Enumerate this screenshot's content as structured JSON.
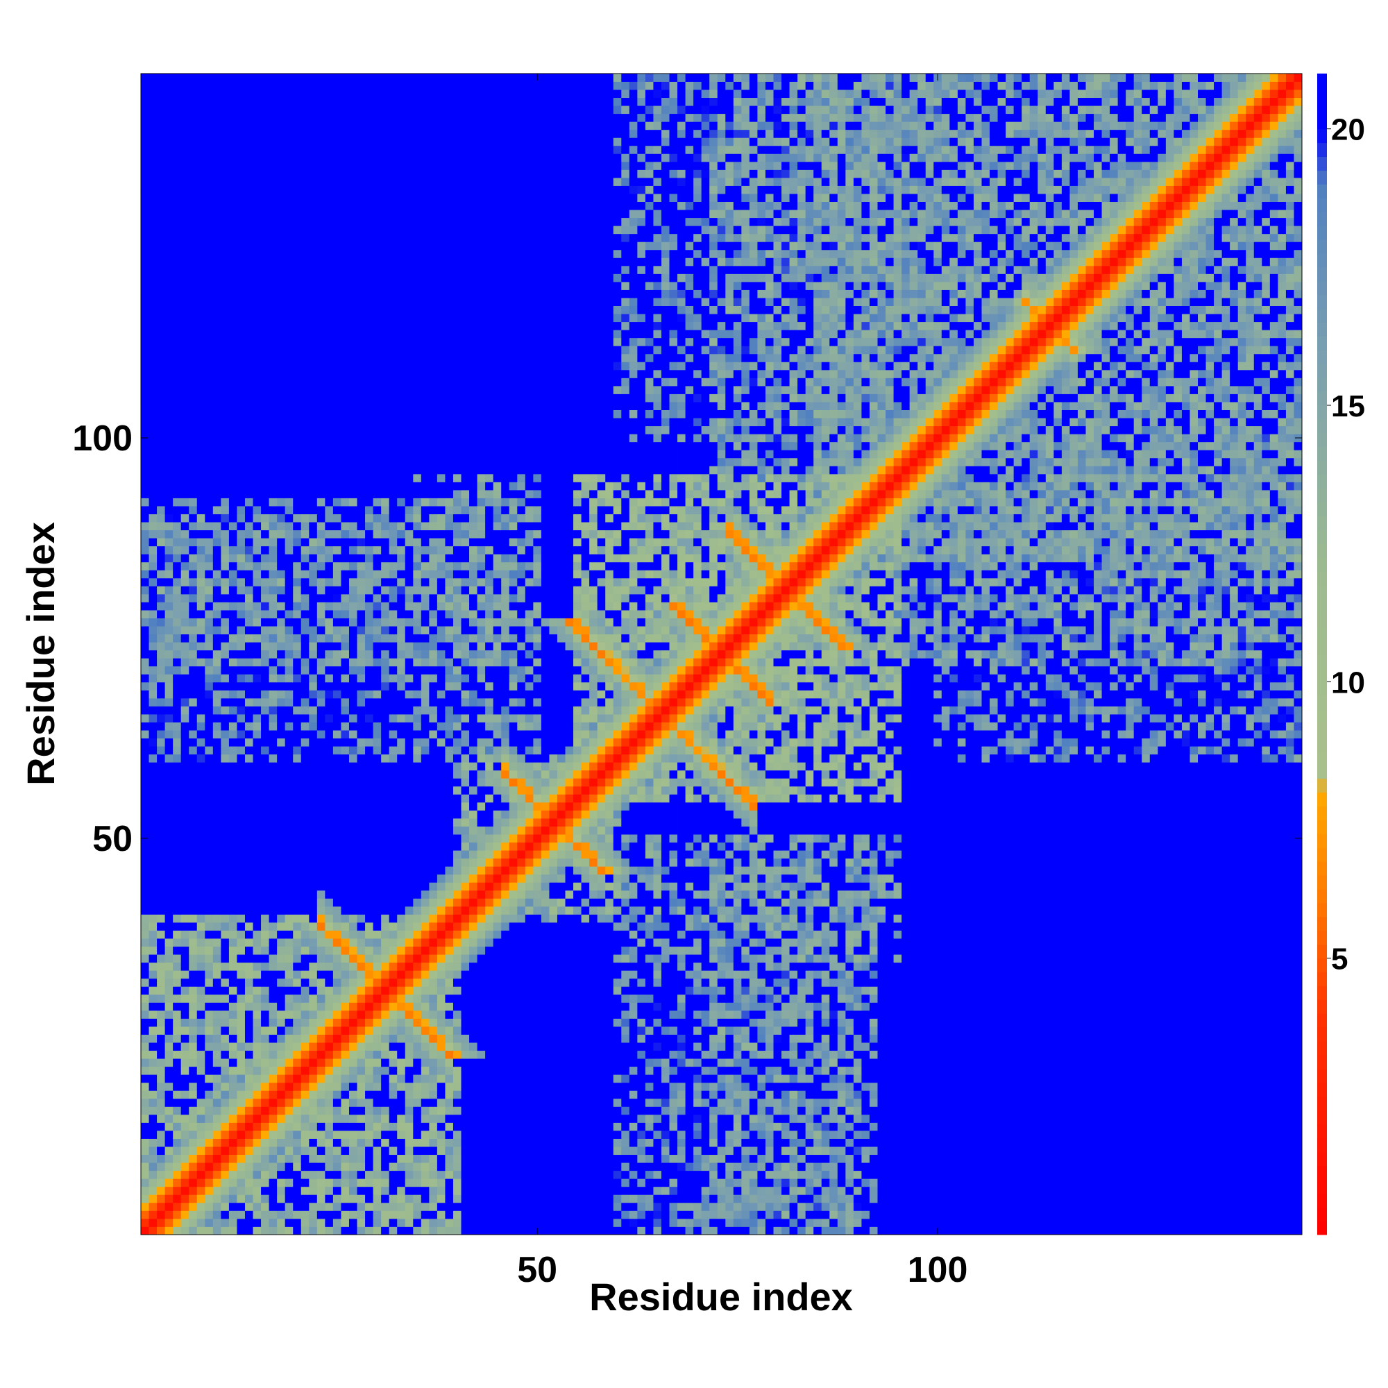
{
  "chart_data": {
    "type": "heatmap",
    "title": "",
    "xlabel": "Residue index",
    "ylabel": "Residue index",
    "n_residues": 145,
    "xlim": [
      1,
      145
    ],
    "ylim": [
      1,
      145
    ],
    "x_ticks": [
      50,
      100
    ],
    "y_ticks": [
      50,
      100
    ],
    "colorbar": {
      "vmin": 0,
      "vmax": 21,
      "ticks": [
        5,
        10,
        15,
        20
      ],
      "stops": [
        {
          "value": 0,
          "color": "#ff0000"
        },
        {
          "value": 4,
          "color": "#ff3300"
        },
        {
          "value": 6,
          "color": "#ff7700"
        },
        {
          "value": 8,
          "color": "#ffaa00"
        },
        {
          "value": 8.3,
          "color": "#a8c08c"
        },
        {
          "value": 12,
          "color": "#9dbb8f"
        },
        {
          "value": 16,
          "color": "#7a9fb0"
        },
        {
          "value": 19,
          "color": "#5080c0"
        },
        {
          "value": 20,
          "color": "#0000ff"
        }
      ]
    },
    "description_of_values": "Pairwise residue distance matrix; values in Angstrom-like units, symmetric about the diagonal; diagonal ~0, background >20",
    "contact_features": [
      {
        "kind": "diagonal_band",
        "from": 1,
        "to": 145,
        "width": 1.5
      },
      {
        "kind": "antiparallel",
        "center_i": 31,
        "center_j": 31,
        "half_length": 8,
        "value": 6
      },
      {
        "kind": "antiparallel",
        "center_i": 52,
        "center_j": 52,
        "half_length": 6,
        "value": 6
      },
      {
        "kind": "antiparallel",
        "center_i": 59,
        "center_j": 72,
        "half_length": 5,
        "value": 6
      },
      {
        "kind": "antiparallel",
        "center_i": 73,
        "center_j": 73,
        "half_length": 6,
        "value": 6
      },
      {
        "kind": "antiparallel",
        "center_i": 81,
        "center_j": 81,
        "half_length": 7,
        "value": 6
      },
      {
        "kind": "antiparallel",
        "center_i": 114,
        "center_j": 114,
        "half_length": 3,
        "value": 7
      }
    ],
    "domain_blocks": [
      {
        "i": [
          1,
          40
        ],
        "j": [
          1,
          40
        ],
        "value": 14
      },
      {
        "i": [
          40,
          60
        ],
        "j": [
          40,
          60
        ],
        "value": 14
      },
      {
        "i": [
          55,
          95
        ],
        "j": [
          55,
          95
        ],
        "value": 13
      },
      {
        "i": [
          85,
          145
        ],
        "j": [
          85,
          145
        ],
        "value": 16
      },
      {
        "i": [
          72,
          92
        ],
        "j": [
          1,
          50
        ],
        "value": 16
      },
      {
        "i": [
          72,
          88
        ],
        "j": [
          95,
          145
        ],
        "value": 16
      },
      {
        "i": [
          35,
          50
        ],
        "j": [
          60,
          95
        ],
        "value": 16
      },
      {
        "i": [
          100,
          145
        ],
        "j": [
          60,
          100
        ],
        "value": 17
      },
      {
        "i": [
          1,
          35
        ],
        "j": [
          60,
          90
        ],
        "value": 17
      }
    ]
  }
}
